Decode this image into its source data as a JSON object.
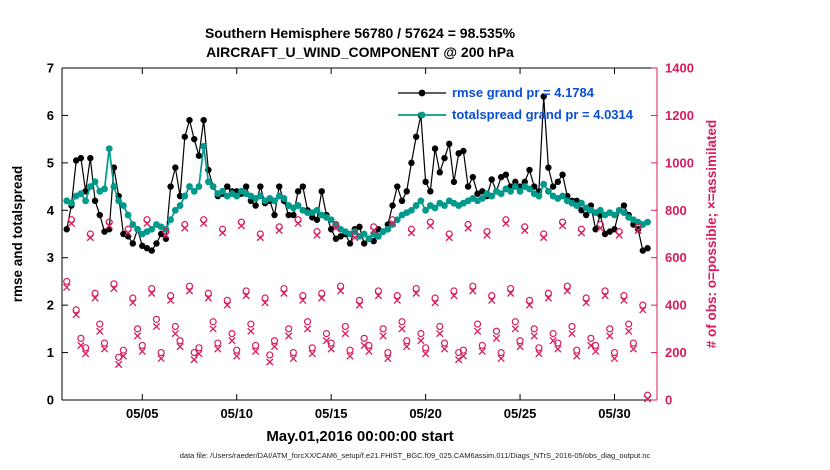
{
  "title": {
    "line1": "Southern Hemisphere 56780 / 57624 = 98.535%",
    "line2": "AIRCRAFT_U_WIND_COMPONENT @ 200 hPa"
  },
  "legend": [
    {
      "label": "rmse grand pr = 4.1784"
    },
    {
      "label": "totalspread grand pr = 4.0314"
    }
  ],
  "caption": "data file: /Users/raeder/DAI/ATM_forcXX/CAM6_setup/f.e21.FHIST_BGC.f09_025.CAM6assim.011/Diags_NTrS_2016-05/obs_diag_output.nc",
  "colors": {
    "rmse": "#000000",
    "totalspread": "#009a8c",
    "obs": "#d81b60",
    "legend_text": "#0a4fd6",
    "axis_black": "#000000"
  },
  "chart_data": {
    "type": "line",
    "title": "Southern Hemisphere 56780 / 57624 = 98.535%",
    "subtitle": "AIRCRAFT_U_WIND_COMPONENT @ 200 hPa",
    "xlabel": "May.01,2016 00:00:00 start",
    "ylabel_left": "rmse and totalspread",
    "ylabel_right": "# of obs: o=possible; ×=assimilated",
    "legend_position": "top-center-inside",
    "grid": false,
    "xlim": [
      0.75,
      32.25
    ],
    "ylim_left": [
      0,
      7
    ],
    "ylim_right": [
      0,
      1400
    ],
    "xticks": [
      5,
      10,
      15,
      20,
      25,
      30
    ],
    "xtick_labels": [
      "05/05",
      "05/10",
      "05/15",
      "05/20",
      "05/25",
      "05/30"
    ],
    "yticks_left": [
      0,
      1,
      2,
      3,
      4,
      5,
      6,
      7
    ],
    "yticks_right": [
      0,
      200,
      400,
      600,
      800,
      1000,
      1200,
      1400
    ],
    "x_start": 1.0,
    "x_step": 0.25,
    "series": [
      {
        "name": "rmse",
        "axis": "left",
        "color": "#000000",
        "marker": "filled-circle",
        "line": true,
        "lw": 1.2,
        "ms": 3.2,
        "values": [
          3.6,
          4.1,
          5.05,
          5.1,
          4.4,
          5.1,
          4.2,
          3.9,
          3.55,
          3.6,
          4.9,
          4.3,
          3.5,
          3.45,
          3.3,
          3.6,
          3.25,
          3.2,
          3.15,
          3.3,
          3.5,
          3.4,
          4.5,
          4.9,
          4.3,
          5.55,
          5.9,
          5.5,
          5.15,
          5.9,
          4.85,
          4.5,
          4.3,
          4.35,
          4.5,
          4.4,
          4.4,
          4.35,
          4.5,
          4.2,
          4.1,
          4.5,
          4.15,
          4.2,
          3.9,
          4.5,
          4.2,
          3.9,
          3.9,
          4.4,
          4.5,
          4.0,
          3.85,
          3.8,
          4.4,
          3.9,
          3.6,
          3.4,
          3.45,
          3.5,
          3.3,
          3.6,
          3.65,
          3.3,
          3.4,
          3.35,
          3.6,
          3.55,
          3.7,
          4.1,
          4.5,
          4.2,
          4.4,
          5.0,
          5.55,
          6.0,
          4.6,
          4.4,
          5.3,
          4.8,
          5.1,
          5.4,
          4.6,
          5.2,
          5.25,
          4.5,
          4.7,
          4.35,
          4.4,
          4.3,
          4.65,
          4.4,
          4.7,
          4.75,
          4.5,
          4.6,
          4.5,
          4.6,
          4.85,
          4.5,
          4.4,
          6.4,
          4.9,
          4.5,
          4.6,
          4.75,
          4.3,
          4.2,
          4.2,
          4.0,
          3.9,
          4.1,
          3.6,
          3.9,
          3.5,
          3.55,
          3.6,
          4.0,
          4.1,
          3.9,
          3.7,
          3.6,
          3.15,
          3.2
        ]
      },
      {
        "name": "totalspread",
        "axis": "left",
        "color": "#009a8c",
        "marker": "filled-circle",
        "line": true,
        "lw": 1.7,
        "ms": 3.4,
        "values": [
          4.2,
          4.15,
          4.3,
          4.35,
          4.2,
          4.5,
          4.6,
          4.4,
          4.45,
          5.3,
          4.5,
          4.2,
          4.1,
          3.9,
          3.7,
          3.6,
          3.5,
          3.55,
          3.6,
          3.7,
          3.65,
          3.6,
          3.8,
          4.0,
          4.1,
          4.3,
          4.5,
          4.4,
          4.5,
          5.35,
          4.6,
          4.5,
          4.35,
          4.4,
          4.3,
          4.35,
          4.3,
          4.4,
          4.35,
          4.3,
          4.25,
          4.3,
          4.2,
          4.25,
          4.2,
          4.3,
          4.25,
          4.1,
          4.05,
          4.1,
          4.0,
          3.95,
          3.95,
          4.0,
          3.9,
          3.85,
          3.8,
          3.7,
          3.6,
          3.55,
          3.5,
          3.55,
          3.45,
          3.5,
          3.4,
          3.5,
          3.45,
          3.55,
          3.6,
          3.7,
          3.8,
          3.9,
          3.95,
          4.0,
          4.1,
          4.2,
          4.0,
          4.1,
          4.05,
          4.15,
          4.1,
          4.2,
          4.15,
          4.1,
          4.15,
          4.2,
          4.25,
          4.2,
          4.25,
          4.35,
          4.3,
          4.4,
          4.35,
          4.45,
          4.4,
          4.5,
          4.4,
          4.5,
          4.45,
          4.35,
          4.3,
          4.55,
          4.4,
          4.3,
          4.25,
          4.3,
          4.2,
          4.15,
          4.1,
          4.15,
          4.05,
          4.0,
          3.95,
          4.0,
          3.9,
          3.95,
          3.9,
          4.0,
          3.95,
          3.85,
          3.8,
          3.75,
          3.7,
          3.75
        ]
      },
      {
        "name": "possible",
        "axis": "right",
        "color": "#d81b60",
        "marker": "open-circle",
        "line": false,
        "lw": 1.2,
        "ms": 3.0,
        "values": [
          500,
          760,
          380,
          260,
          220,
          700,
          450,
          320,
          240,
          750,
          490,
          180,
          210,
          720,
          430,
          300,
          230,
          760,
          470,
          340,
          200,
          710,
          440,
          310,
          250,
          740,
          480,
          200,
          220,
          760,
          450,
          330,
          240,
          720,
          420,
          280,
          210,
          750,
          460,
          320,
          230,
          700,
          430,
          190,
          250,
          730,
          470,
          300,
          200,
          760,
          440,
          330,
          220,
          710,
          450,
          280,
          240,
          740,
          480,
          310,
          210,
          700,
          420,
          260,
          230,
          730,
          460,
          300,
          200,
          760,
          440,
          330,
          250,
          720,
          470,
          280,
          220,
          750,
          430,
          310,
          240,
          700,
          460,
          200,
          210,
          740,
          480,
          320,
          230,
          710,
          440,
          290,
          200,
          760,
          470,
          330,
          250,
          730,
          420,
          300,
          220,
          700,
          450,
          280,
          240,
          750,
          480,
          310,
          210,
          720,
          430,
          260,
          230,
          740,
          460,
          300,
          200,
          710,
          440,
          320,
          240,
          730,
          400,
          20
        ]
      },
      {
        "name": "assimilated",
        "axis": "right",
        "color": "#d81b60",
        "marker": "cross",
        "line": false,
        "lw": 1.3,
        "ms": 3.2,
        "values": [
          475,
          745,
          360,
          230,
          195,
          685,
          430,
          290,
          215,
          735,
          470,
          150,
          185,
          705,
          410,
          270,
          205,
          745,
          450,
          310,
          175,
          695,
          420,
          280,
          225,
          725,
          460,
          170,
          195,
          745,
          430,
          300,
          215,
          705,
          400,
          250,
          185,
          735,
          440,
          290,
          205,
          685,
          410,
          160,
          225,
          715,
          450,
          270,
          175,
          745,
          420,
          300,
          195,
          695,
          430,
          250,
          215,
          725,
          460,
          280,
          185,
          685,
          400,
          230,
          205,
          715,
          440,
          270,
          175,
          745,
          420,
          300,
          225,
          705,
          450,
          250,
          195,
          735,
          410,
          280,
          215,
          685,
          440,
          170,
          185,
          725,
          460,
          290,
          205,
          695,
          420,
          260,
          175,
          745,
          450,
          300,
          225,
          715,
          400,
          270,
          195,
          685,
          430,
          250,
          215,
          735,
          460,
          280,
          185,
          705,
          410,
          230,
          205,
          725,
          440,
          270,
          175,
          695,
          420,
          290,
          215,
          715,
          380,
          5
        ]
      }
    ]
  }
}
